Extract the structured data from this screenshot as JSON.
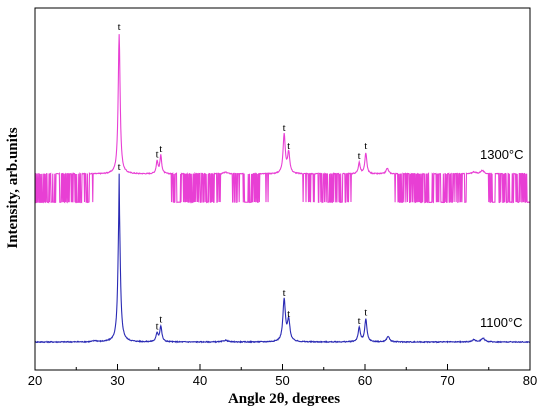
{
  "chart_data": {
    "type": "line",
    "xlabel": "Angle 2θ, degrees",
    "ylabel": "Intensity, arb.units",
    "xlim": [
      20,
      80
    ],
    "x_ticks": [
      20,
      30,
      40,
      50,
      60,
      70,
      80
    ],
    "y_ticks_shown": false,
    "grid": false,
    "legend": "none",
    "series": [
      {
        "name": "1300°C",
        "color": "#e83fd4",
        "baseline": 100,
        "peaks": [
          {
            "x": 30.2,
            "h": 100,
            "w": 0.14
          },
          {
            "x": 34.8,
            "h": 9,
            "w": 0.13
          },
          {
            "x": 35.25,
            "h": 13,
            "w": 0.13
          },
          {
            "x": 43.1,
            "h": 1.2,
            "w": 0.3
          },
          {
            "x": 50.2,
            "h": 28,
            "w": 0.16
          },
          {
            "x": 50.75,
            "h": 15,
            "w": 0.16
          },
          {
            "x": 59.3,
            "h": 8,
            "w": 0.14
          },
          {
            "x": 60.1,
            "h": 15,
            "w": 0.14
          },
          {
            "x": 62.7,
            "h": 4,
            "w": 0.18
          },
          {
            "x": 73.2,
            "h": 1.5,
            "w": 0.25
          },
          {
            "x": 74.2,
            "h": 2.5,
            "w": 0.25
          }
        ],
        "peak_labels": [
          {
            "x": 30.2,
            "y": 100,
            "text": "t"
          },
          {
            "x": 34.8,
            "y": 9,
            "text": "t"
          },
          {
            "x": 35.25,
            "y": 13,
            "text": "t"
          },
          {
            "x": 50.2,
            "y": 28,
            "text": "t"
          },
          {
            "x": 50.75,
            "y": 15,
            "text": "t"
          },
          {
            "x": 59.3,
            "y": 8,
            "text": "t"
          },
          {
            "x": 60.1,
            "y": 15,
            "text": "t"
          }
        ]
      },
      {
        "name": "1100°C",
        "color": "#2a2ab4",
        "baseline": 0,
        "peaks": [
          {
            "x": 27.3,
            "h": 0.8,
            "w": 0.3
          },
          {
            "x": 30.2,
            "h": 100,
            "w": 0.16
          },
          {
            "x": 34.8,
            "h": 6,
            "w": 0.15
          },
          {
            "x": 35.25,
            "h": 11,
            "w": 0.15
          },
          {
            "x": 43.1,
            "h": 1.2,
            "w": 0.3
          },
          {
            "x": 50.2,
            "h": 30,
            "w": 0.18
          },
          {
            "x": 50.75,
            "h": 15,
            "w": 0.18
          },
          {
            "x": 59.3,
            "h": 10,
            "w": 0.16
          },
          {
            "x": 60.1,
            "h": 16,
            "w": 0.16
          },
          {
            "x": 62.8,
            "h": 4,
            "w": 0.2
          },
          {
            "x": 73.2,
            "h": 1.5,
            "w": 0.25
          },
          {
            "x": 74.3,
            "h": 2.8,
            "w": 0.25
          }
        ],
        "peak_labels": [
          {
            "x": 30.2,
            "y": 100,
            "text": "t"
          },
          {
            "x": 34.8,
            "y": 6,
            "text": "t"
          },
          {
            "x": 35.25,
            "y": 11,
            "text": "t"
          },
          {
            "x": 50.2,
            "y": 30,
            "text": "t"
          },
          {
            "x": 50.75,
            "y": 15,
            "text": "t"
          },
          {
            "x": 59.3,
            "y": 10,
            "text": "t"
          },
          {
            "x": 60.1,
            "y": 16,
            "text": "t"
          }
        ]
      }
    ]
  }
}
